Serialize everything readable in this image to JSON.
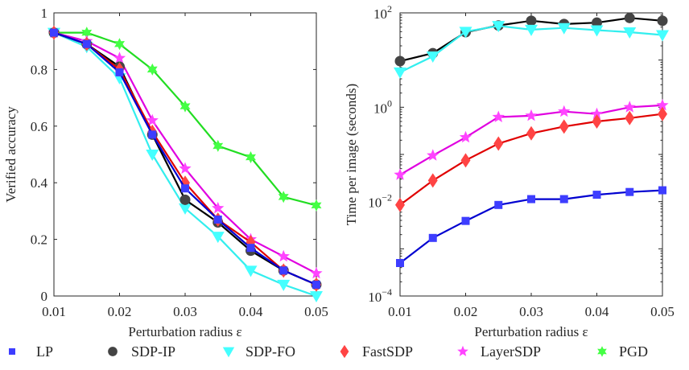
{
  "chart_data": [
    {
      "type": "line",
      "x": [
        0.01,
        0.015,
        0.02,
        0.025,
        0.03,
        0.035,
        0.04,
        0.045,
        0.05
      ],
      "xlabel": "Perturbation radius ε",
      "ylabel": "Verified accuracy",
      "xlim": [
        0.01,
        0.05
      ],
      "ylim": [
        0,
        1
      ],
      "yscale": "linear",
      "xticks": [
        "0.01",
        "0.02",
        "0.03",
        "0.04",
        "0.05"
      ],
      "xtick_values": [
        0.01,
        0.02,
        0.03,
        0.04,
        0.05
      ],
      "yticks": [
        "0",
        "0.2",
        "0.4",
        "0.6",
        "0.8",
        "1"
      ],
      "ytick_values": [
        0,
        0.2,
        0.4,
        0.6,
        0.8,
        1
      ],
      "grid": false,
      "series": [
        {
          "name": "PGD",
          "values": [
            0.93,
            0.93,
            0.89,
            0.8,
            0.67,
            0.53,
            0.49,
            0.35,
            0.32
          ]
        },
        {
          "name": "SDP-FO",
          "values": [
            0.93,
            0.88,
            0.77,
            0.5,
            0.31,
            0.21,
            0.09,
            0.04,
            0.0
          ]
        },
        {
          "name": "LayerSDP",
          "values": [
            0.93,
            0.9,
            0.84,
            0.62,
            0.45,
            0.31,
            0.2,
            0.14,
            0.08
          ]
        },
        {
          "name": "SDP-IP",
          "values": [
            0.93,
            0.89,
            0.81,
            0.57,
            0.34,
            0.26,
            0.16,
            0.09,
            0.04
          ]
        },
        {
          "name": "FastSDP",
          "values": [
            0.93,
            0.89,
            0.8,
            0.58,
            0.4,
            0.27,
            0.19,
            0.09,
            0.04
          ]
        },
        {
          "name": "LP",
          "values": [
            0.93,
            0.89,
            0.79,
            0.57,
            0.38,
            0.27,
            0.17,
            0.09,
            0.04
          ]
        }
      ]
    },
    {
      "type": "line",
      "x": [
        0.01,
        0.015,
        0.02,
        0.025,
        0.03,
        0.035,
        0.04,
        0.045,
        0.05
      ],
      "xlabel": "Perturbation radius ε",
      "ylabel": "Time per image (seconds)",
      "xlim": [
        0.01,
        0.05
      ],
      "ylim": [
        0.0001,
        100
      ],
      "yscale": "log",
      "xticks": [
        "0.01",
        "0.02",
        "0.03",
        "0.04",
        "0.05"
      ],
      "xtick_values": [
        0.01,
        0.02,
        0.03,
        0.04,
        0.05
      ],
      "yticks": [
        "-4",
        "-2",
        "0",
        "2"
      ],
      "ytick_base": "10",
      "grid": false,
      "series": [
        {
          "name": "SDP-IP",
          "values": [
            9.5,
            14,
            39,
            54,
            68,
            58,
            62,
            78,
            68
          ]
        },
        {
          "name": "SDP-FO",
          "values": [
            5.5,
            12,
            40,
            53,
            44,
            48,
            43,
            39,
            34
          ]
        },
        {
          "name": "LayerSDP",
          "values": [
            0.037,
            0.095,
            0.23,
            0.62,
            0.66,
            0.81,
            0.72,
            1.0,
            1.1
          ]
        },
        {
          "name": "FastSDP",
          "values": [
            0.0085,
            0.028,
            0.075,
            0.17,
            0.28,
            0.39,
            0.5,
            0.59,
            0.72
          ]
        },
        {
          "name": "LP",
          "values": [
            0.0005,
            0.0017,
            0.0039,
            0.0085,
            0.0113,
            0.0113,
            0.014,
            0.016,
            0.0174
          ]
        }
      ]
    }
  ],
  "legend": {
    "placement": "bottom",
    "items": [
      {
        "name": "LP",
        "marker": "square",
        "color": "#3d3dff",
        "line": "#0000d0"
      },
      {
        "name": "SDP-IP",
        "marker": "circle",
        "color": "#444444",
        "line": "#000000"
      },
      {
        "name": "SDP-FO",
        "marker": "triangle-down",
        "color": "#44ffff",
        "line": "#33eeee"
      },
      {
        "name": "FastSDP",
        "marker": "diamond",
        "color": "#ff4444",
        "line": "#e00000"
      },
      {
        "name": "LayerSDP",
        "marker": "star",
        "color": "#ff44ff",
        "line": "#e000e0"
      },
      {
        "name": "PGD",
        "marker": "hexagram",
        "color": "#44ff44",
        "line": "#22dd22"
      }
    ]
  }
}
